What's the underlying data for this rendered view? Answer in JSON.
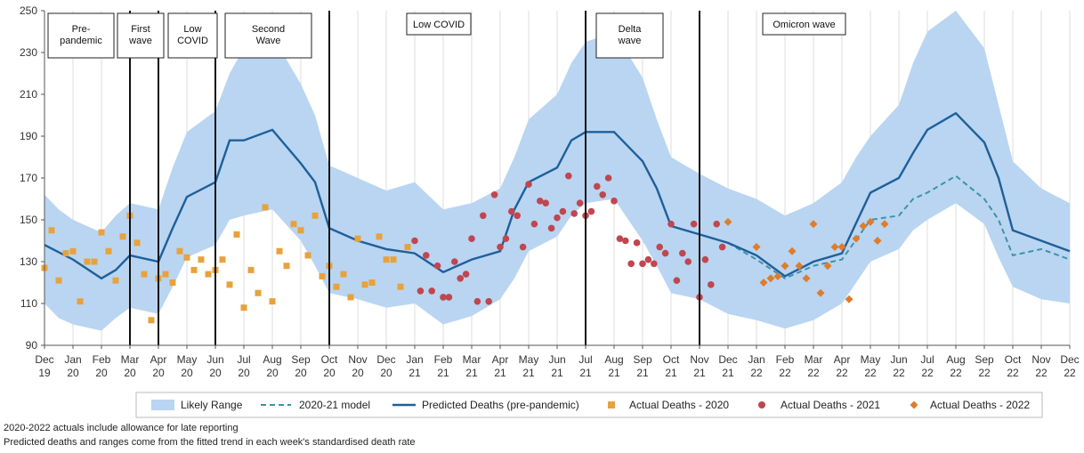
{
  "chart_data": {
    "type": "line",
    "ylim": [
      90,
      250
    ],
    "y_ticks": [
      90,
      110,
      130,
      150,
      170,
      190,
      210,
      230,
      250
    ],
    "grid": "vertical",
    "month_ticks": [
      {
        "m": "Dec",
        "y": "19"
      },
      {
        "m": "Jan",
        "y": "20"
      },
      {
        "m": "Feb",
        "y": "20"
      },
      {
        "m": "Mar",
        "y": "20"
      },
      {
        "m": "Apr",
        "y": "20"
      },
      {
        "m": "May",
        "y": "20"
      },
      {
        "m": "Jun",
        "y": "20"
      },
      {
        "m": "Jul",
        "y": "20"
      },
      {
        "m": "Aug",
        "y": "20"
      },
      {
        "m": "Sep",
        "y": "20"
      },
      {
        "m": "Oct",
        "y": "20"
      },
      {
        "m": "Nov",
        "y": "20"
      },
      {
        "m": "Dec",
        "y": "20"
      },
      {
        "m": "Jan",
        "y": "21"
      },
      {
        "m": "Feb",
        "y": "21"
      },
      {
        "m": "Mar",
        "y": "21"
      },
      {
        "m": "Apr",
        "y": "21"
      },
      {
        "m": "May",
        "y": "21"
      },
      {
        "m": "Jun",
        "y": "21"
      },
      {
        "m": "Jul",
        "y": "21"
      },
      {
        "m": "Aug",
        "y": "21"
      },
      {
        "m": "Sep",
        "y": "21"
      },
      {
        "m": "Oct",
        "y": "21"
      },
      {
        "m": "Nov",
        "y": "21"
      },
      {
        "m": "Dec",
        "y": "21"
      },
      {
        "m": "Jan",
        "y": "22"
      },
      {
        "m": "Feb",
        "y": "22"
      },
      {
        "m": "Mar",
        "y": "22"
      },
      {
        "m": "Apr",
        "y": "22"
      },
      {
        "m": "May",
        "y": "22"
      },
      {
        "m": "Jun",
        "y": "22"
      },
      {
        "m": "Jul",
        "y": "22"
      },
      {
        "m": "Aug",
        "y": "22"
      },
      {
        "m": "Sep",
        "y": "22"
      },
      {
        "m": "Oct",
        "y": "22"
      },
      {
        "m": "Nov",
        "y": "22"
      },
      {
        "m": "Dec",
        "y": "22"
      }
    ],
    "phase_dividers": [
      "Mar 20",
      "Apr 20",
      "Jun 20",
      "Oct 20",
      "Jul 21",
      "Nov 21"
    ],
    "phases": [
      {
        "label": "Pre-\npandemic",
        "from": "Dec 19",
        "to": "Mar 20"
      },
      {
        "label": "First\nwave",
        "from": "Mar 20",
        "to": "Apr 20"
      },
      {
        "label": "Low\nCOVID",
        "from": "Apr 20",
        "to": "Jun 20"
      },
      {
        "label": "Second\nWave",
        "from": "Jun 20",
        "to": "Oct 20"
      },
      {
        "label": "Low COVID",
        "from": "Oct 20",
        "to": "Jul 21"
      },
      {
        "label": "Delta\nwave",
        "from": "Jul 21",
        "to": "Nov 21"
      },
      {
        "label": "Omicron wave",
        "from": "Nov 21",
        "to": "Dec 22"
      }
    ],
    "likely_range": [
      {
        "x": "Dec 19",
        "low": 110,
        "high": 162
      },
      {
        "x": "Dec 19 +0.5",
        "low": 103,
        "high": 155
      },
      {
        "x": "Jan 20",
        "low": 100,
        "high": 150
      },
      {
        "x": "Feb 20",
        "low": 97,
        "high": 144
      },
      {
        "x": "Feb 20 +0.5",
        "low": 103,
        "high": 152
      },
      {
        "x": "Mar 20",
        "low": 108,
        "high": 158
      },
      {
        "x": "Apr 20",
        "low": 105,
        "high": 155
      },
      {
        "x": "Apr 20 +0.5",
        "low": 118,
        "high": 175
      },
      {
        "x": "May 20",
        "low": 132,
        "high": 192
      },
      {
        "x": "Jun 20",
        "low": 138,
        "high": 202
      },
      {
        "x": "Jun 20 +0.5",
        "low": 150,
        "high": 220
      },
      {
        "x": "Jul 20",
        "low": 152,
        "high": 232
      },
      {
        "x": "Aug 20",
        "low": 155,
        "high": 238
      },
      {
        "x": "Sep 20",
        "low": 140,
        "high": 215
      },
      {
        "x": "Sep 20 +0.5",
        "low": 128,
        "high": 200
      },
      {
        "x": "Oct 20",
        "low": 115,
        "high": 176
      },
      {
        "x": "Nov 20",
        "low": 112,
        "high": 170
      },
      {
        "x": "Dec 20",
        "low": 108,
        "high": 164
      },
      {
        "x": "Jan 21",
        "low": 110,
        "high": 168
      },
      {
        "x": "Feb 21",
        "low": 100,
        "high": 155
      },
      {
        "x": "Mar 21",
        "low": 104,
        "high": 158
      },
      {
        "x": "Apr 21",
        "low": 112,
        "high": 165
      },
      {
        "x": "Apr 21 +0.5",
        "low": 122,
        "high": 180
      },
      {
        "x": "May 21",
        "low": 135,
        "high": 198
      },
      {
        "x": "Jun 21",
        "low": 142,
        "high": 210
      },
      {
        "x": "Jun 21 +0.5",
        "low": 152,
        "high": 225
      },
      {
        "x": "Jul 21",
        "low": 158,
        "high": 235
      },
      {
        "x": "Aug 21",
        "low": 160,
        "high": 240
      },
      {
        "x": "Sep 21",
        "low": 140,
        "high": 218
      },
      {
        "x": "Sep 21 +0.5",
        "low": 128,
        "high": 198
      },
      {
        "x": "Oct 21",
        "low": 115,
        "high": 180
      },
      {
        "x": "Nov 21",
        "low": 112,
        "high": 172
      },
      {
        "x": "Dec 21",
        "low": 105,
        "high": 165
      },
      {
        "x": "Jan 22",
        "low": 102,
        "high": 160
      },
      {
        "x": "Feb 22",
        "low": 98,
        "high": 152
      },
      {
        "x": "Mar 22",
        "low": 102,
        "high": 158
      },
      {
        "x": "Apr 22",
        "low": 110,
        "high": 168
      },
      {
        "x": "Apr 22 +0.5",
        "low": 120,
        "high": 180
      },
      {
        "x": "May 22",
        "low": 130,
        "high": 190
      },
      {
        "x": "Jun 22",
        "low": 136,
        "high": 205
      },
      {
        "x": "Jun 22 +0.5",
        "low": 145,
        "high": 225
      },
      {
        "x": "Jul 22",
        "low": 150,
        "high": 240
      },
      {
        "x": "Aug 22",
        "low": 158,
        "high": 250
      },
      {
        "x": "Sep 22",
        "low": 148,
        "high": 232
      },
      {
        "x": "Sep 22 +0.5",
        "low": 132,
        "high": 205
      },
      {
        "x": "Oct 22",
        "low": 118,
        "high": 178
      },
      {
        "x": "Nov 22",
        "low": 112,
        "high": 165
      },
      {
        "x": "Dec 22",
        "low": 110,
        "high": 158
      }
    ],
    "predicted_pre_pandemic": [
      {
        "x": "Dec 19",
        "y": 138
      },
      {
        "x": "Jan 20",
        "y": 131
      },
      {
        "x": "Feb 20",
        "y": 122
      },
      {
        "x": "Feb 20 +0.5",
        "y": 126
      },
      {
        "x": "Mar 20",
        "y": 133
      },
      {
        "x": "Apr 20",
        "y": 130
      },
      {
        "x": "Apr 20 +0.5",
        "y": 146
      },
      {
        "x": "May 20",
        "y": 161
      },
      {
        "x": "Jun 20",
        "y": 168
      },
      {
        "x": "Jun 20 +0.5",
        "y": 188
      },
      {
        "x": "Jul 20",
        "y": 188
      },
      {
        "x": "Aug 20",
        "y": 193
      },
      {
        "x": "Sep 20",
        "y": 177
      },
      {
        "x": "Sep 20 +0.5",
        "y": 168
      },
      {
        "x": "Oct 20",
        "y": 146
      },
      {
        "x": "Nov 20",
        "y": 140
      },
      {
        "x": "Dec 20",
        "y": 136
      },
      {
        "x": "Jan 21",
        "y": 134
      },
      {
        "x": "Feb 21",
        "y": 125
      },
      {
        "x": "Mar 21",
        "y": 131
      },
      {
        "x": "Apr 21",
        "y": 135
      },
      {
        "x": "Apr 21 +0.5",
        "y": 155
      },
      {
        "x": "May 21",
        "y": 168
      },
      {
        "x": "Jun 21",
        "y": 175
      },
      {
        "x": "Jun 21 +0.5",
        "y": 188
      },
      {
        "x": "Jul 21",
        "y": 192
      },
      {
        "x": "Aug 21",
        "y": 192
      },
      {
        "x": "Sep 21",
        "y": 178
      },
      {
        "x": "Sep 21 +0.5",
        "y": 165
      },
      {
        "x": "Oct 21",
        "y": 147
      },
      {
        "x": "Nov 21",
        "y": 143
      },
      {
        "x": "Dec 21",
        "y": 139
      },
      {
        "x": "Jan 22",
        "y": 133
      },
      {
        "x": "Feb 22",
        "y": 123
      },
      {
        "x": "Mar 22",
        "y": 130
      },
      {
        "x": "Apr 22",
        "y": 134
      },
      {
        "x": "May 22",
        "y": 163
      },
      {
        "x": "Jun 22",
        "y": 170
      },
      {
        "x": "Jun 22 +0.5",
        "y": 182
      },
      {
        "x": "Jul 22",
        "y": 193
      },
      {
        "x": "Aug 22",
        "y": 201
      },
      {
        "x": "Sep 22",
        "y": 187
      },
      {
        "x": "Sep 22 +0.5",
        "y": 170
      },
      {
        "x": "Oct 22",
        "y": 145
      },
      {
        "x": "Nov 22",
        "y": 140
      },
      {
        "x": "Dec 22",
        "y": 135
      }
    ],
    "model_2020_21": [
      {
        "x": "Dec 21",
        "y": 139
      },
      {
        "x": "Jan 22",
        "y": 131
      },
      {
        "x": "Feb 22",
        "y": 122
      },
      {
        "x": "Mar 22",
        "y": 128
      },
      {
        "x": "Apr 22",
        "y": 131
      },
      {
        "x": "May 22",
        "y": 150
      },
      {
        "x": "Jun 22",
        "y": 152
      },
      {
        "x": "Jun 22 +0.5",
        "y": 160
      },
      {
        "x": "Jul 22",
        "y": 163
      },
      {
        "x": "Aug 22",
        "y": 171
      },
      {
        "x": "Sep 22",
        "y": 160
      },
      {
        "x": "Sep 22 +0.5",
        "y": 150
      },
      {
        "x": "Oct 22",
        "y": 133
      },
      {
        "x": "Nov 22",
        "y": 136
      },
      {
        "x": "Dec 22",
        "y": 131
      }
    ],
    "actual_2020": [
      {
        "x": "Dec 19",
        "y": 127
      },
      {
        "x": "Dec 19 +0.25",
        "y": 145
      },
      {
        "x": "Dec 19 +0.5",
        "y": 121
      },
      {
        "x": "Dec 19 +0.75",
        "y": 134
      },
      {
        "x": "Jan 20",
        "y": 135
      },
      {
        "x": "Jan 20 +0.25",
        "y": 111
      },
      {
        "x": "Jan 20 +0.5",
        "y": 130
      },
      {
        "x": "Jan 20 +0.75",
        "y": 130
      },
      {
        "x": "Feb 20",
        "y": 144
      },
      {
        "x": "Feb 20 +0.25",
        "y": 135
      },
      {
        "x": "Feb 20 +0.5",
        "y": 121
      },
      {
        "x": "Feb 20 +0.75",
        "y": 142
      },
      {
        "x": "Mar 20",
        "y": 152
      },
      {
        "x": "Mar 20 +0.25",
        "y": 139
      },
      {
        "x": "Mar 20 +0.5",
        "y": 124
      },
      {
        "x": "Mar 20 +0.75",
        "y": 102
      },
      {
        "x": "Apr 20",
        "y": 122
      },
      {
        "x": "Apr 20 +0.25",
        "y": 124
      },
      {
        "x": "Apr 20 +0.5",
        "y": 120
      },
      {
        "x": "Apr 20 +0.75",
        "y": 135
      },
      {
        "x": "May 20",
        "y": 132
      },
      {
        "x": "May 20 +0.25",
        "y": 126
      },
      {
        "x": "May 20 +0.5",
        "y": 131
      },
      {
        "x": "May 20 +0.75",
        "y": 124
      },
      {
        "x": "Jun 20",
        "y": 126
      },
      {
        "x": "Jun 20 +0.25",
        "y": 131
      },
      {
        "x": "Jun 20 +0.5",
        "y": 119
      },
      {
        "x": "Jun 20 +0.75",
        "y": 143
      },
      {
        "x": "Jul 20",
        "y": 108
      },
      {
        "x": "Jul 20 +0.25",
        "y": 126
      },
      {
        "x": "Jul 20 +0.5",
        "y": 115
      },
      {
        "x": "Jul 20 +0.75",
        "y": 156
      },
      {
        "x": "Aug 20",
        "y": 111
      },
      {
        "x": "Aug 20 +0.25",
        "y": 135
      },
      {
        "x": "Aug 20 +0.5",
        "y": 128
      },
      {
        "x": "Aug 20 +0.75",
        "y": 148
      },
      {
        "x": "Sep 20",
        "y": 145
      },
      {
        "x": "Sep 20 +0.25",
        "y": 133
      },
      {
        "x": "Sep 20 +0.5",
        "y": 152
      },
      {
        "x": "Sep 20 +0.75",
        "y": 123
      },
      {
        "x": "Oct 20",
        "y": 128
      },
      {
        "x": "Oct 20 +0.25",
        "y": 118
      },
      {
        "x": "Oct 20 +0.5",
        "y": 124
      },
      {
        "x": "Oct 20 +0.75",
        "y": 113
      },
      {
        "x": "Nov 20",
        "y": 141
      },
      {
        "x": "Nov 20 +0.25",
        "y": 119
      },
      {
        "x": "Nov 20 +0.5",
        "y": 120
      },
      {
        "x": "Nov 20 +0.75",
        "y": 142
      },
      {
        "x": "Dec 20",
        "y": 131
      },
      {
        "x": "Dec 20 +0.25",
        "y": 131
      },
      {
        "x": "Dec 20 +0.5",
        "y": 118
      },
      {
        "x": "Dec 20 +0.75",
        "y": 137
      }
    ],
    "actual_2021": [
      {
        "x": "Jan 21",
        "y": 140
      },
      {
        "x": "Jan 21 +0.2",
        "y": 116
      },
      {
        "x": "Jan 21 +0.4",
        "y": 133
      },
      {
        "x": "Jan 21 +0.6",
        "y": 116
      },
      {
        "x": "Jan 21 +0.8",
        "y": 128
      },
      {
        "x": "Feb 21",
        "y": 113
      },
      {
        "x": "Feb 21 +0.2",
        "y": 113
      },
      {
        "x": "Feb 21 +0.4",
        "y": 130
      },
      {
        "x": "Feb 21 +0.6",
        "y": 122
      },
      {
        "x": "Feb 21 +0.8",
        "y": 124
      },
      {
        "x": "Mar 21",
        "y": 141
      },
      {
        "x": "Mar 21 +0.2",
        "y": 111
      },
      {
        "x": "Mar 21 +0.4",
        "y": 152
      },
      {
        "x": "Mar 21 +0.6",
        "y": 111
      },
      {
        "x": "Mar 21 +0.8",
        "y": 162
      },
      {
        "x": "Apr 21",
        "y": 137
      },
      {
        "x": "Apr 21 +0.2",
        "y": 141
      },
      {
        "x": "Apr 21 +0.4",
        "y": 154
      },
      {
        "x": "Apr 21 +0.6",
        "y": 152
      },
      {
        "x": "Apr 21 +0.8",
        "y": 137
      },
      {
        "x": "May 21",
        "y": 167
      },
      {
        "x": "May 21 +0.2",
        "y": 148
      },
      {
        "x": "May 21 +0.4",
        "y": 159
      },
      {
        "x": "May 21 +0.6",
        "y": 158
      },
      {
        "x": "May 21 +0.8",
        "y": 146
      },
      {
        "x": "Jun 21",
        "y": 151
      },
      {
        "x": "Jun 21 +0.2",
        "y": 154
      },
      {
        "x": "Jun 21 +0.4",
        "y": 171
      },
      {
        "x": "Jun 21 +0.6",
        "y": 153
      },
      {
        "x": "Jun 21 +0.8",
        "y": 158
      },
      {
        "x": "Jul 21",
        "y": 152
      },
      {
        "x": "Jul 21 +0.2",
        "y": 154
      },
      {
        "x": "Jul 21 +0.4",
        "y": 166
      },
      {
        "x": "Jul 21 +0.6",
        "y": 162
      },
      {
        "x": "Jul 21 +0.8",
        "y": 170
      },
      {
        "x": "Aug 21",
        "y": 159
      },
      {
        "x": "Aug 21 +0.2",
        "y": 141
      },
      {
        "x": "Aug 21 +0.4",
        "y": 140
      },
      {
        "x": "Aug 21 +0.6",
        "y": 129
      },
      {
        "x": "Aug 21 +0.8",
        "y": 139
      },
      {
        "x": "Sep 21",
        "y": 129
      },
      {
        "x": "Sep 21 +0.2",
        "y": 131
      },
      {
        "x": "Sep 21 +0.4",
        "y": 129
      },
      {
        "x": "Sep 21 +0.6",
        "y": 137
      },
      {
        "x": "Sep 21 +0.8",
        "y": 134
      },
      {
        "x": "Oct 21",
        "y": 148
      },
      {
        "x": "Oct 21 +0.2",
        "y": 121
      },
      {
        "x": "Oct 21 +0.4",
        "y": 134
      },
      {
        "x": "Oct 21 +0.6",
        "y": 130
      },
      {
        "x": "Oct 21 +0.8",
        "y": 148
      },
      {
        "x": "Nov 21",
        "y": 113
      },
      {
        "x": "Nov 21 +0.2",
        "y": 131
      },
      {
        "x": "Nov 21 +0.4",
        "y": 119
      },
      {
        "x": "Nov 21 +0.6",
        "y": 148
      },
      {
        "x": "Nov 21 +0.8",
        "y": 137
      }
    ],
    "actual_2022": [
      {
        "x": "Dec 21",
        "y": 149
      },
      {
        "x": "Jan 22",
        "y": 137
      },
      {
        "x": "Jan 22 +0.25",
        "y": 120
      },
      {
        "x": "Jan 22 +0.5",
        "y": 122
      },
      {
        "x": "Jan 22 +0.75",
        "y": 123
      },
      {
        "x": "Feb 22",
        "y": 128
      },
      {
        "x": "Feb 22 +0.25",
        "y": 135
      },
      {
        "x": "Feb 22 +0.5",
        "y": 128
      },
      {
        "x": "Feb 22 +0.75",
        "y": 122
      },
      {
        "x": "Mar 22",
        "y": 148
      },
      {
        "x": "Mar 22 +0.25",
        "y": 115
      },
      {
        "x": "Mar 22 +0.5",
        "y": 128
      },
      {
        "x": "Mar 22 +0.75",
        "y": 137
      },
      {
        "x": "Apr 22",
        "y": 137
      },
      {
        "x": "Apr 22 +0.25",
        "y": 112
      },
      {
        "x": "Apr 22 +0.5",
        "y": 141
      },
      {
        "x": "Apr 22 +0.75",
        "y": 147
      },
      {
        "x": "May 22",
        "y": 149
      },
      {
        "x": "May 22 +0.25",
        "y": 140
      },
      {
        "x": "May 22 +0.5",
        "y": 148
      }
    ],
    "legend": {
      "likely_range": "Likely Range",
      "model": "2020-21 model",
      "predicted": "Predicted Deaths (pre-pandemic)",
      "actual_2020": "Actual Deaths - 2020",
      "actual_2021": "Actual Deaths - 2021",
      "actual_2022": "Actual Deaths - 2022"
    },
    "colors": {
      "band": "#b9d5f2",
      "predicted": "#1f5f99",
      "model": "#3d93a8",
      "actual_2020": "#e8a23c",
      "actual_2021": "#c0464f",
      "actual_2022": "#e07c2a"
    }
  },
  "footnotes": [
    "2020-2022 actuals include allowance for late reporting",
    "Predicted deaths and ranges come from the fitted trend in each week's standardised death rate"
  ]
}
